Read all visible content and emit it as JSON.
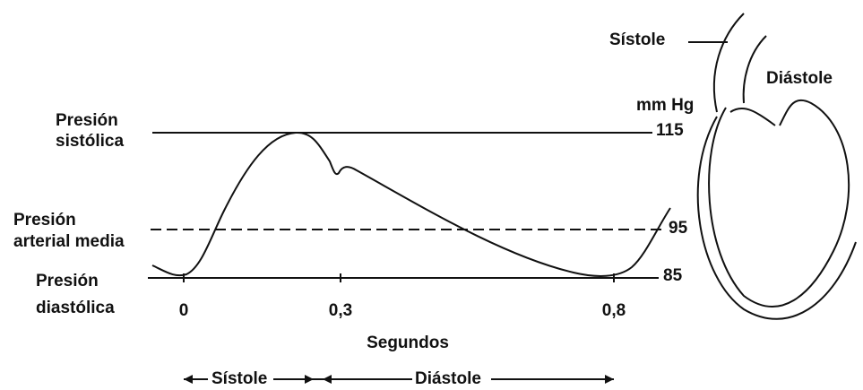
{
  "labels": {
    "systolic": [
      "Presión",
      "sistólica"
    ],
    "mean": [
      "Presión",
      "arterial media"
    ],
    "diastolic": [
      "Presión",
      "diastólica"
    ],
    "levels": [
      "115",
      "95",
      "85"
    ],
    "x_ticks": [
      "0",
      "0,3",
      "0,8"
    ],
    "x_axis": "Segundos",
    "phases": [
      "Sístole",
      "Diástole"
    ],
    "heart": {
      "systole": "Sístole",
      "diastole": "Diástole",
      "unit": "mm Hg"
    }
  }
}
